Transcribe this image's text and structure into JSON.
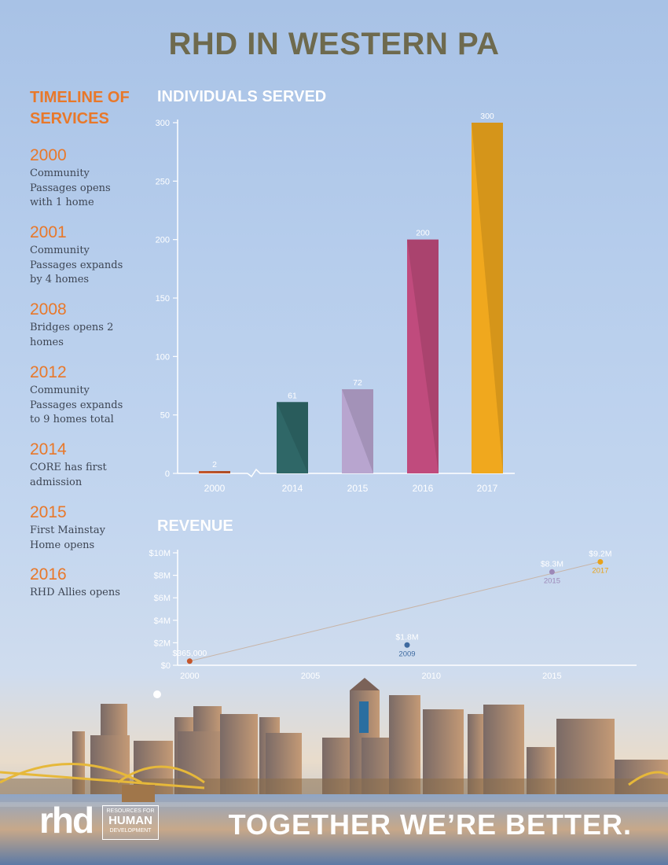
{
  "page": {
    "title": "RHD IN WESTERN PA",
    "tagline": "TOGETHER WE’RE BETTER.",
    "logo": {
      "rhd": "rhd",
      "line1": "RESOURCES FOR",
      "line2": "HUMAN",
      "line3": "DEVELOPMENT"
    }
  },
  "timeline": {
    "heading": "TIMELINE OF SERVICES",
    "items": [
      {
        "year": "2000",
        "text": "Community Passages opens with 1 home"
      },
      {
        "year": "2001",
        "text": "Community Passages expands by 4 homes"
      },
      {
        "year": "2008",
        "text": "Bridges opens 2 homes"
      },
      {
        "year": "2012",
        "text": "Community Passages expands to 9 homes total"
      },
      {
        "year": "2014",
        "text": "CORE has first admission"
      },
      {
        "year": "2015",
        "text": "First Mainstay Home opens"
      },
      {
        "year": "2016",
        "text": "RHD Allies opens"
      }
    ]
  },
  "colors": {
    "accent": "#e8782a",
    "title": "#6e6a4e"
  },
  "chart_data": [
    {
      "type": "bar",
      "title": "INDIVIDUALS SERVED",
      "categories": [
        "2000",
        "2014",
        "2015",
        "2016",
        "2017"
      ],
      "values": [
        2,
        61,
        72,
        200,
        300
      ],
      "data_labels": [
        "2",
        "61",
        "72",
        "200",
        "300"
      ],
      "colors": [
        "#c4562b",
        "#2f6767",
        "#b8a5cf",
        "#c04b7d",
        "#f0a81e"
      ],
      "yticks": [
        "0",
        "50",
        "100",
        "150",
        "200",
        "250",
        "300"
      ],
      "ylim": [
        0,
        300
      ],
      "axis_break": true,
      "grid": false,
      "legend": "none"
    },
    {
      "type": "scatter",
      "title": "REVENUE",
      "points": [
        {
          "x": 2000,
          "y": 0.365,
          "label": "$365,000",
          "year_label": "",
          "color": "#c4562b"
        },
        {
          "x": 2009,
          "y": 1.8,
          "label": "$1.8M",
          "year_label": "2009",
          "color": "#3e6aa0"
        },
        {
          "x": 2015,
          "y": 8.3,
          "label": "$8.3M",
          "year_label": "2015",
          "color": "#9d89b8"
        },
        {
          "x": 2017,
          "y": 9.2,
          "label": "$9.2M",
          "year_label": "2017",
          "color": "#e8a21a"
        }
      ],
      "trend_line": {
        "from": [
          2000,
          0.365
        ],
        "to": [
          2017,
          9.2
        ]
      },
      "xticks": [
        "2000",
        "2005",
        "2010",
        "2015"
      ],
      "xtick_values": [
        2000,
        2005,
        2010,
        2015
      ],
      "yticks": [
        "$0",
        "$2M",
        "$4M",
        "$6M",
        "$8M",
        "$10M"
      ],
      "ytick_values": [
        0,
        2,
        4,
        6,
        8,
        10
      ],
      "xlim": [
        1999.5,
        2018.5
      ],
      "ylim": [
        0,
        10
      ],
      "grid": false,
      "legend": "none"
    }
  ]
}
